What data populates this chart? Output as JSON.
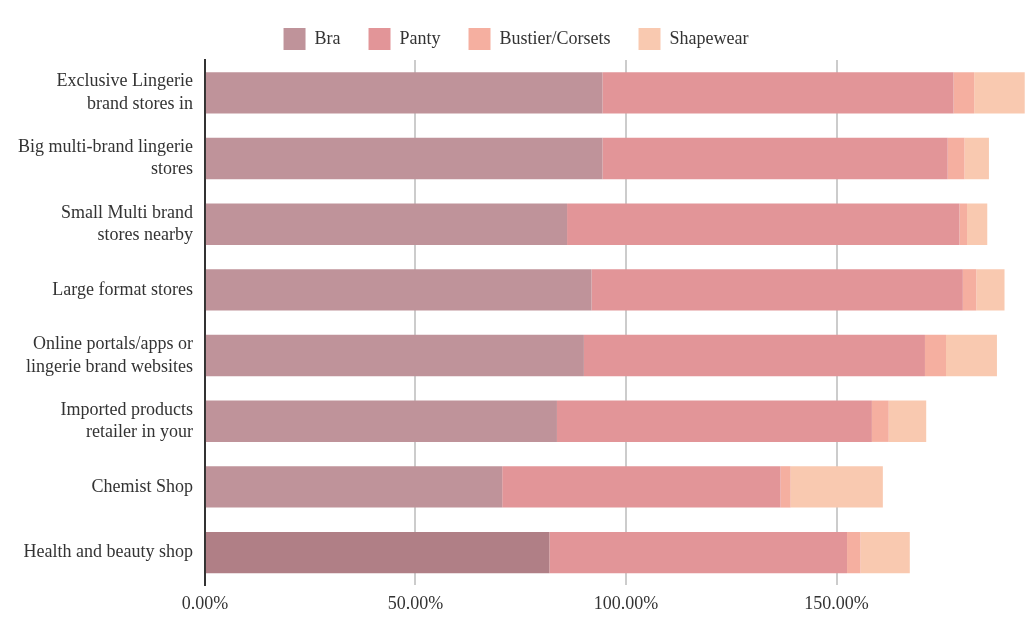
{
  "chart_data": {
    "type": "bar",
    "orientation": "horizontal",
    "stacked": true,
    "categories": [
      "Exclusive Lingerie brand stores in",
      "Big multi-brand lingerie stores",
      "Small Multi brand stores nearby",
      "Large format stores",
      "Online portals/apps or lingerie brand websites",
      "Imported products retailer in your",
      "Chemist Shop",
      "Health and beauty shop"
    ],
    "series": [
      {
        "name": "Bra",
        "color": "#bf939a",
        "colors": [
          "#bf939a",
          "#bf939a",
          "#bf939a",
          "#bf939a",
          "#bf939a",
          "#bf939a",
          "#bf939a",
          "#b07f86"
        ],
        "values": [
          94.4,
          94.4,
          86.0,
          91.8,
          90.0,
          83.6,
          70.6,
          81.8
        ]
      },
      {
        "name": "Panty",
        "color": "#e29598",
        "values": [
          83.4,
          82.0,
          93.2,
          88.2,
          81.0,
          74.8,
          66.1,
          70.7
        ]
      },
      {
        "name": "Bustier/Corsets",
        "color": "#f5afa0",
        "values": [
          4.9,
          4.0,
          1.8,
          3.2,
          5.0,
          4.0,
          2.4,
          3.2
        ]
      },
      {
        "name": "Shapewear",
        "color": "#f9c9b0",
        "values": [
          12.0,
          5.8,
          4.8,
          6.7,
          12.1,
          8.9,
          21.9,
          11.7
        ]
      }
    ],
    "xlim": [
      0,
      195
    ],
    "xticks": [
      {
        "value": 0,
        "label": "0.00%"
      },
      {
        "value": 50,
        "label": "50.00%"
      },
      {
        "value": 100,
        "label": "100.00%"
      },
      {
        "value": 150,
        "label": "150.00%"
      }
    ],
    "grid": "x",
    "legend": "top"
  }
}
